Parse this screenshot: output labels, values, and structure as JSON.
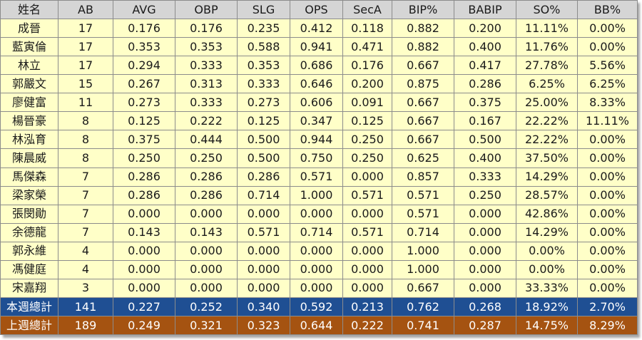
{
  "table": {
    "headers": [
      "姓名",
      "AB",
      "AVG",
      "OBP",
      "SLG",
      "OPS",
      "SecA",
      "BIP%",
      "BABIP",
      "SO%",
      "BB%"
    ],
    "rows": [
      [
        "成晉",
        "17",
        "0.176",
        "0.176",
        "0.235",
        "0.412",
        "0.118",
        "0.882",
        "0.200",
        "11.11%",
        "0.00%"
      ],
      [
        "藍寅倫",
        "17",
        "0.353",
        "0.353",
        "0.588",
        "0.941",
        "0.471",
        "0.882",
        "0.400",
        "11.76%",
        "0.00%"
      ],
      [
        "林立",
        "17",
        "0.294",
        "0.333",
        "0.353",
        "0.686",
        "0.176",
        "0.667",
        "0.417",
        "27.78%",
        "5.56%"
      ],
      [
        "郭嚴文",
        "15",
        "0.267",
        "0.313",
        "0.333",
        "0.646",
        "0.200",
        "0.875",
        "0.286",
        "6.25%",
        "6.25%"
      ],
      [
        "廖健富",
        "11",
        "0.273",
        "0.333",
        "0.273",
        "0.606",
        "0.091",
        "0.667",
        "0.375",
        "25.00%",
        "8.33%"
      ],
      [
        "楊晉豪",
        "8",
        "0.125",
        "0.222",
        "0.125",
        "0.347",
        "0.125",
        "0.667",
        "0.167",
        "22.22%",
        "11.11%"
      ],
      [
        "林泓育",
        "8",
        "0.375",
        "0.444",
        "0.500",
        "0.944",
        "0.250",
        "0.667",
        "0.500",
        "22.22%",
        "0.00%"
      ],
      [
        "陳晨威",
        "8",
        "0.250",
        "0.250",
        "0.500",
        "0.750",
        "0.250",
        "0.625",
        "0.400",
        "37.50%",
        "0.00%"
      ],
      [
        "馬傑森",
        "7",
        "0.286",
        "0.286",
        "0.286",
        "0.571",
        "0.000",
        "0.857",
        "0.333",
        "14.29%",
        "0.00%"
      ],
      [
        "梁家榮",
        "7",
        "0.286",
        "0.286",
        "0.714",
        "1.000",
        "0.571",
        "0.571",
        "0.250",
        "28.57%",
        "0.00%"
      ],
      [
        "張閔勛",
        "7",
        "0.000",
        "0.000",
        "0.000",
        "0.000",
        "0.000",
        "0.571",
        "0.000",
        "42.86%",
        "0.00%"
      ],
      [
        "余德龍",
        "7",
        "0.143",
        "0.143",
        "0.571",
        "0.714",
        "0.571",
        "0.714",
        "0.000",
        "14.29%",
        "0.00%"
      ],
      [
        "郭永維",
        "4",
        "0.000",
        "0.000",
        "0.000",
        "0.000",
        "0.000",
        "1.000",
        "0.000",
        "0.00%",
        "0.00%"
      ],
      [
        "馮健庭",
        "4",
        "0.000",
        "0.000",
        "0.000",
        "0.000",
        "0.000",
        "1.000",
        "0.000",
        "0.00%",
        "0.00%"
      ],
      [
        "宋嘉翔",
        "3",
        "0.000",
        "0.000",
        "0.000",
        "0.000",
        "0.000",
        "0.667",
        "0.000",
        "33.33%",
        "0.00%"
      ]
    ],
    "totals": {
      "this_week": [
        "本週總計",
        "141",
        "0.227",
        "0.252",
        "0.340",
        "0.592",
        "0.213",
        "0.762",
        "0.268",
        "18.92%",
        "2.70%"
      ],
      "last_week": [
        "上週總計",
        "189",
        "0.249",
        "0.321",
        "0.323",
        "0.644",
        "0.222",
        "0.741",
        "0.287",
        "14.75%",
        "8.29%"
      ]
    }
  },
  "colors": {
    "header_bg": "#d5d5d5",
    "row_bg": "#ffffc8",
    "this_week_bg": "#1f4f93",
    "last_week_bg": "#a55311",
    "border": "#8c8c8c"
  }
}
